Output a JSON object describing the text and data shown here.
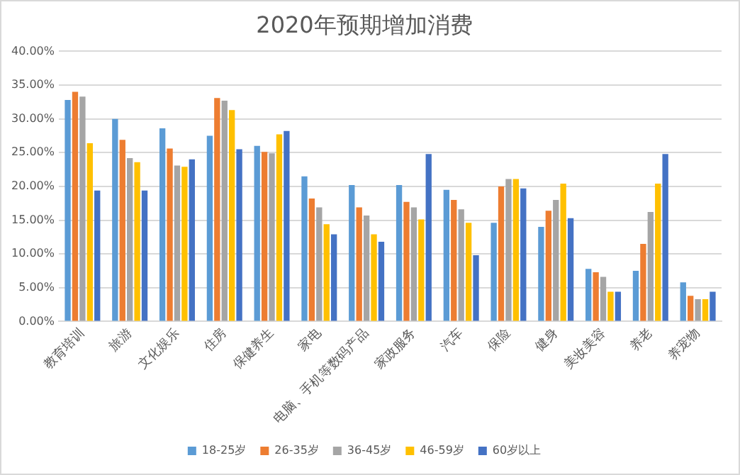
{
  "chart_data": {
    "type": "bar",
    "title": "2020年预期增加消费",
    "categories": [
      "教育培训",
      "旅游",
      "文化娱乐",
      "住房",
      "保健养生",
      "家电",
      "电脑、手机等数码产品",
      "家政服务",
      "汽车",
      "保险",
      "健身",
      "美妆美容",
      "养老",
      "养宠物"
    ],
    "series": [
      {
        "name": "18-25岁",
        "color": "#5b9bd5",
        "values": [
          32.8,
          30.0,
          28.6,
          27.5,
          26.0,
          21.5,
          20.2,
          20.2,
          19.5,
          14.6,
          14.0,
          7.8,
          7.5,
          5.8
        ]
      },
      {
        "name": "26-35岁",
        "color": "#ed7d31",
        "values": [
          34.0,
          26.9,
          25.6,
          33.1,
          25.1,
          18.2,
          16.9,
          17.7,
          18.0,
          20.0,
          16.4,
          7.3,
          11.5,
          3.8
        ]
      },
      {
        "name": "36-45岁",
        "color": "#a5a5a5",
        "values": [
          33.3,
          24.2,
          23.1,
          32.7,
          24.9,
          16.9,
          15.7,
          16.9,
          16.6,
          21.1,
          18.0,
          6.6,
          16.2,
          3.3
        ]
      },
      {
        "name": "46-59岁",
        "color": "#ffc000",
        "values": [
          26.4,
          23.6,
          22.9,
          31.3,
          27.7,
          14.4,
          12.9,
          15.1,
          14.6,
          21.1,
          20.4,
          4.4,
          20.4,
          3.3
        ]
      },
      {
        "name": "60岁以上",
        "color": "#4472c4",
        "values": [
          19.4,
          19.4,
          24.0,
          25.5,
          28.2,
          12.9,
          11.8,
          24.8,
          9.8,
          19.7,
          15.3,
          4.4,
          24.8,
          4.4
        ]
      }
    ],
    "ylim": [
      0,
      40
    ],
    "yticks": [
      {
        "value": 0,
        "label": "0.00%"
      },
      {
        "value": 5,
        "label": "5.00%"
      },
      {
        "value": 10,
        "label": "10.00%"
      },
      {
        "value": 15,
        "label": "15.00%"
      },
      {
        "value": 20,
        "label": "20.00%"
      },
      {
        "value": 25,
        "label": "25.00%"
      },
      {
        "value": 30,
        "label": "30.00%"
      },
      {
        "value": 35,
        "label": "35.00%"
      },
      {
        "value": 40,
        "label": "40.00%"
      }
    ],
    "grid": "y",
    "legend": "bottom"
  }
}
